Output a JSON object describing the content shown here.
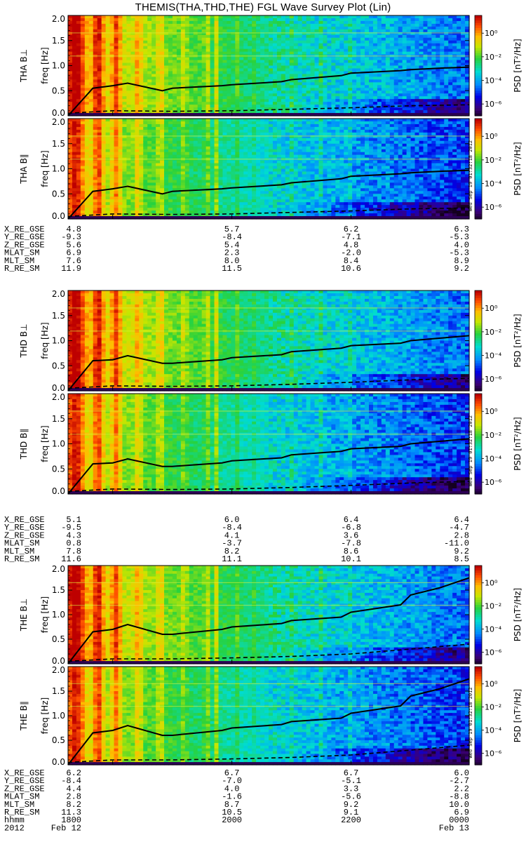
{
  "title": "THEMIS(THA,THD,THE) FGL Wave Survey Plot (Lin)",
  "colorbar": {
    "label": "PSD [nT²/Hz]",
    "ticks": [
      {
        "text": "10⁰",
        "exp": 0
      },
      {
        "text": "10⁻²",
        "exp": -2
      },
      {
        "text": "10⁻⁴",
        "exp": -4
      },
      {
        "text": "10⁻⁶",
        "exp": -6
      }
    ],
    "range_exp": [
      -7,
      1.5
    ]
  },
  "timestamp": "Wed Sep 19 01:32:18 2012",
  "chart_data": [
    {
      "type": "heatmap",
      "panel": "THA B⊥",
      "probe": "THA",
      "ylabel": "THA B⊥",
      "yunit": "freq [Hz]",
      "ylim": [
        0,
        2.0
      ],
      "yticks": [
        "0.0",
        "0.5",
        "1.0",
        "1.5",
        "2.0"
      ],
      "z": "PSD [nT²/Hz]",
      "series": [
        {
          "name": "",
          "x": [
            1715,
            1740,
            1800,
            1815,
            1850,
            1900,
            1950,
            2000,
            2050,
            2100,
            2150,
            2200,
            2250,
            2300,
            2330,
            2359
          ],
          "y": [
            0.0,
            0.55,
            0.6,
            0.65,
            0.5,
            0.55,
            0.6,
            0.62,
            0.68,
            0.72,
            0.8,
            0.85,
            0.9,
            0.92,
            0.95,
            0.97
          ]
        },
        {
          "name": "",
          "x": [
            1715,
            1800,
            1900,
            2000,
            2100,
            2200,
            2300,
            2359
          ],
          "y": [
            0.05,
            0.1,
            0.09,
            0.1,
            0.13,
            0.16,
            0.2,
            0.22
          ]
        }
      ]
    },
    {
      "type": "heatmap",
      "panel": "THA B∥",
      "probe": "THA",
      "ylabel": "THA B∥",
      "yunit": "freq [Hz]",
      "ylim": [
        0,
        2.0
      ],
      "yticks": [
        "0.0",
        "0.5",
        "1.0",
        "1.5",
        "2.0"
      ],
      "z": "PSD [nT²/Hz]",
      "series": [
        {
          "name": "",
          "x": [
            1715,
            1740,
            1800,
            1815,
            1850,
            1900,
            1950,
            2000,
            2050,
            2100,
            2150,
            2200,
            2250,
            2300,
            2330,
            2359
          ],
          "y": [
            0.0,
            0.55,
            0.6,
            0.65,
            0.5,
            0.55,
            0.6,
            0.62,
            0.68,
            0.72,
            0.8,
            0.85,
            0.9,
            0.92,
            0.95,
            0.97
          ]
        },
        {
          "name": "",
          "x": [
            1715,
            1800,
            1900,
            2000,
            2100,
            2200,
            2300,
            2359
          ],
          "y": [
            0.05,
            0.1,
            0.09,
            0.1,
            0.13,
            0.16,
            0.2,
            0.22
          ]
        }
      ]
    },
    {
      "type": "heatmap",
      "panel": "THD B⊥",
      "probe": "THD",
      "ylabel": "THD B⊥",
      "yunit": "freq [Hz]",
      "ylim": [
        0,
        2.0
      ],
      "yticks": [
        "0.0",
        "0.5",
        "1.0",
        "1.5",
        "2.0"
      ],
      "z": "PSD [nT²/Hz]",
      "series": [
        {
          "name": "",
          "x": [
            1715,
            1740,
            1800,
            1815,
            1850,
            1900,
            1950,
            2000,
            2050,
            2100,
            2150,
            2200,
            2250,
            2300,
            2330,
            2359
          ],
          "y": [
            0.0,
            0.6,
            0.62,
            0.7,
            0.55,
            0.55,
            0.62,
            0.66,
            0.72,
            0.78,
            0.85,
            0.9,
            0.95,
            1.0,
            1.05,
            1.1
          ]
        },
        {
          "name": "",
          "x": [
            1715,
            1800,
            1900,
            2000,
            2100,
            2200,
            2300,
            2359
          ],
          "y": [
            0.05,
            0.1,
            0.09,
            0.1,
            0.13,
            0.17,
            0.22,
            0.25
          ]
        }
      ]
    },
    {
      "type": "heatmap",
      "panel": "THD B∥",
      "probe": "THD",
      "ylabel": "THD B∥",
      "yunit": "freq [Hz]",
      "ylim": [
        0,
        2.0
      ],
      "yticks": [
        "0.0",
        "0.5",
        "1.0",
        "1.5",
        "2.0"
      ],
      "z": "PSD [nT²/Hz]",
      "series": [
        {
          "name": "",
          "x": [
            1715,
            1740,
            1800,
            1815,
            1850,
            1900,
            1950,
            2000,
            2050,
            2100,
            2150,
            2200,
            2250,
            2300,
            2330,
            2359
          ],
          "y": [
            0.0,
            0.6,
            0.62,
            0.7,
            0.55,
            0.55,
            0.62,
            0.66,
            0.72,
            0.78,
            0.85,
            0.9,
            0.95,
            1.0,
            1.05,
            1.1
          ]
        },
        {
          "name": "",
          "x": [
            1715,
            1800,
            1900,
            2000,
            2100,
            2200,
            2300,
            2359
          ],
          "y": [
            0.05,
            0.1,
            0.09,
            0.1,
            0.13,
            0.17,
            0.22,
            0.25
          ]
        }
      ]
    },
    {
      "type": "heatmap",
      "panel": "THE B⊥",
      "probe": "THE",
      "ylabel": "THE B⊥",
      "yunit": "freq [Hz]",
      "ylim": [
        0,
        2.0
      ],
      "yticks": [
        "0.0",
        "0.5",
        "1.0",
        "1.5",
        "2.0"
      ],
      "z": "PSD [nT²/Hz]",
      "series": [
        {
          "name": "",
          "x": [
            1715,
            1740,
            1800,
            1815,
            1850,
            1900,
            1950,
            2000,
            2050,
            2100,
            2150,
            2200,
            2250,
            2300,
            2330,
            2359
          ],
          "y": [
            0.0,
            0.65,
            0.7,
            0.8,
            0.6,
            0.6,
            0.7,
            0.75,
            0.82,
            0.88,
            0.95,
            1.05,
            1.2,
            1.4,
            1.55,
            1.75
          ]
        },
        {
          "name": "",
          "x": [
            1715,
            1800,
            1900,
            2000,
            2100,
            2200,
            2300,
            2359
          ],
          "y": [
            0.05,
            0.1,
            0.1,
            0.12,
            0.15,
            0.2,
            0.3,
            0.4
          ]
        }
      ]
    },
    {
      "type": "heatmap",
      "panel": "THE B∥",
      "probe": "THE",
      "ylabel": "THE B∥",
      "yunit": "freq [Hz]",
      "ylim": [
        0,
        2.0
      ],
      "yticks": [
        "0.0",
        "0.5",
        "1.0",
        "1.5",
        "2.0"
      ],
      "z": "PSD [nT²/Hz]",
      "series": [
        {
          "name": "",
          "x": [
            1715,
            1740,
            1800,
            1815,
            1850,
            1900,
            1950,
            2000,
            2050,
            2100,
            2150,
            2200,
            2250,
            2300,
            2330,
            2359
          ],
          "y": [
            0.0,
            0.65,
            0.7,
            0.8,
            0.6,
            0.6,
            0.7,
            0.75,
            0.82,
            0.88,
            0.95,
            1.05,
            1.2,
            1.4,
            1.55,
            1.75
          ]
        },
        {
          "name": "",
          "x": [
            1715,
            1800,
            1900,
            2000,
            2100,
            2200,
            2300,
            2359
          ],
          "y": [
            0.05,
            0.1,
            0.1,
            0.12,
            0.15,
            0.2,
            0.3,
            0.4
          ]
        }
      ]
    }
  ],
  "ephemeris": [
    {
      "probe": "THA",
      "rows": [
        {
          "label": "X_RE_GSE",
          "values": [
            "4.8",
            "5.7",
            "6.2",
            "6.3"
          ]
        },
        {
          "label": "Y_RE_GSE",
          "values": [
            "-9.3",
            "-8.4",
            "-7.1",
            "-5.3"
          ]
        },
        {
          "label": "Z_RE_GSE",
          "values": [
            "5.6",
            "5.4",
            "4.8",
            "4.0"
          ]
        },
        {
          "label": "MLAT_SM",
          "values": [
            "6.9",
            "2.3",
            "-2.0",
            "-5.3"
          ]
        },
        {
          "label": "MLT_SM",
          "values": [
            "7.6",
            "8.0",
            "8.4",
            "8.9"
          ]
        },
        {
          "label": "R_RE_SM",
          "values": [
            "11.9",
            "11.5",
            "10.6",
            "9.2"
          ]
        }
      ]
    },
    {
      "probe": "THD",
      "rows": [
        {
          "label": "X_RE_GSE",
          "values": [
            "5.1",
            "6.0",
            "6.4",
            "6.4"
          ]
        },
        {
          "label": "Y_RE_GSE",
          "values": [
            "-9.5",
            "-8.4",
            "-6.8",
            "-4.7"
          ]
        },
        {
          "label": "Z_RE_GSE",
          "values": [
            "4.3",
            "4.1",
            "3.6",
            "2.8"
          ]
        },
        {
          "label": "MLAT_SM",
          "values": [
            "0.8",
            "-3.7",
            "-7.8",
            "-11.0"
          ]
        },
        {
          "label": "MLT_SM",
          "values": [
            "7.8",
            "8.2",
            "8.6",
            "9.2"
          ]
        },
        {
          "label": "R_RE_SM",
          "values": [
            "11.6",
            "11.1",
            "10.1",
            "8.5"
          ]
        }
      ]
    },
    {
      "probe": "THE",
      "rows": [
        {
          "label": "X_RE_GSE",
          "values": [
            "6.2",
            "6.7",
            "6.7",
            "6.0"
          ]
        },
        {
          "label": "Y_RE_GSE",
          "values": [
            "-8.4",
            "-7.0",
            "-5.1",
            "-2.7"
          ]
        },
        {
          "label": "Z_RE_GSE",
          "values": [
            "4.4",
            "4.0",
            "3.3",
            "2.2"
          ]
        },
        {
          "label": "MLAT_SM",
          "values": [
            "2.8",
            "-1.6",
            "-5.6",
            "-8.8"
          ]
        },
        {
          "label": "MLT_SM",
          "values": [
            "8.2",
            "8.7",
            "9.2",
            "10.0"
          ]
        },
        {
          "label": "R_RE_SM",
          "values": [
            "11.3",
            "10.5",
            "9.1",
            "6.9"
          ]
        },
        {
          "label": "hhmm",
          "values": [
            "1800",
            "2000",
            "2200",
            "0000"
          ]
        }
      ]
    }
  ],
  "date_row": {
    "year": "2012",
    "start": "Feb 12",
    "end": "Feb 13"
  },
  "x_axis": {
    "start_hhmm": 1715,
    "end_hhmm": 2359
  }
}
